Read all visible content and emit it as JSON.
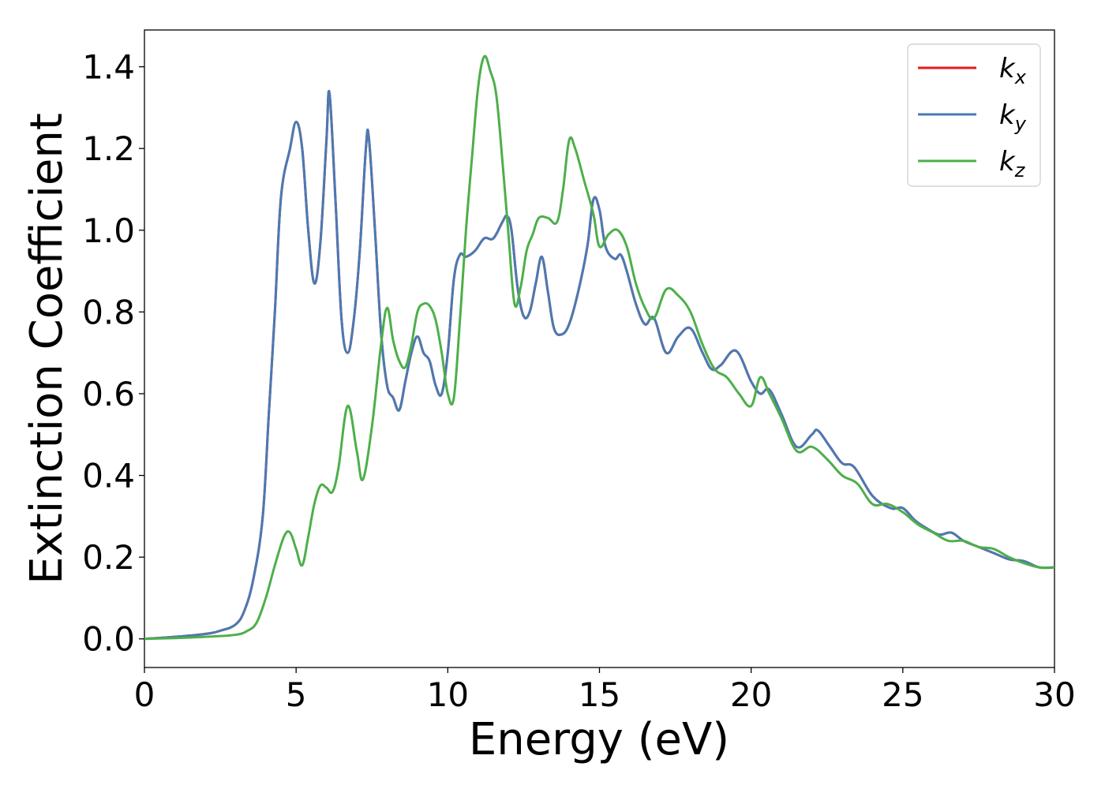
{
  "chart_data": {
    "type": "line",
    "title": "",
    "xlabel": "Energy (eV)",
    "ylabel": "Extinction Coefficient",
    "xlim": [
      0,
      30
    ],
    "ylim": [
      -0.07,
      1.49
    ],
    "xticks": [
      0,
      5,
      10,
      15,
      20,
      25,
      30
    ],
    "xtick_labels": [
      "0",
      "5",
      "10",
      "15",
      "20",
      "25",
      "30"
    ],
    "yticks": [
      0.0,
      0.2,
      0.4,
      0.6,
      0.8,
      1.0,
      1.2,
      1.4
    ],
    "ytick_labels": [
      "0.0",
      "0.2",
      "0.4",
      "0.6",
      "0.8",
      "1.0",
      "1.2",
      "1.4"
    ],
    "grid": false,
    "legend_position": "top-right",
    "series": [
      {
        "name": "k_x",
        "label_base": "k",
        "label_sub": "x",
        "color": "#e41a1c",
        "x": [
          0,
          1,
          2,
          2.5,
          3,
          3.3,
          3.6,
          3.9,
          4.1,
          4.3,
          4.5,
          4.8,
          5.0,
          5.2,
          5.4,
          5.6,
          5.8,
          6.0,
          6.1,
          6.3,
          6.5,
          6.7,
          6.9,
          7.1,
          7.3,
          7.4,
          7.6,
          7.8,
          8.0,
          8.2,
          8.4,
          8.6,
          8.8,
          9.0,
          9.2,
          9.4,
          9.6,
          9.8,
          10.0,
          10.2,
          10.4,
          10.6,
          10.9,
          11.2,
          11.5,
          11.8,
          11.95,
          12.1,
          12.3,
          12.5,
          12.7,
          12.9,
          13.1,
          13.3,
          13.5,
          13.75,
          14.0,
          14.3,
          14.6,
          14.8,
          15.0,
          15.2,
          15.5,
          15.7,
          15.9,
          16.2,
          16.5,
          16.8,
          17.2,
          17.6,
          18.0,
          18.4,
          18.7,
          19.0,
          19.5,
          20.0,
          20.3,
          20.6,
          21.0,
          21.5,
          22.0,
          22.2,
          22.6,
          23.0,
          23.4,
          24.0,
          24.6,
          25.0,
          25.4,
          25.8,
          26.2,
          26.6,
          27.0,
          27.5,
          28.0,
          28.5,
          29.0,
          29.5,
          30.0
        ],
        "y": [
          0.0,
          0.005,
          0.012,
          0.02,
          0.035,
          0.07,
          0.15,
          0.3,
          0.55,
          0.8,
          1.08,
          1.2,
          1.265,
          1.2,
          1.0,
          0.87,
          0.97,
          1.22,
          1.335,
          1.07,
          0.78,
          0.7,
          0.78,
          0.95,
          1.2,
          1.225,
          1.0,
          0.75,
          0.62,
          0.59,
          0.56,
          0.63,
          0.7,
          0.74,
          0.7,
          0.68,
          0.62,
          0.6,
          0.7,
          0.88,
          0.94,
          0.935,
          0.95,
          0.98,
          0.98,
          1.02,
          1.035,
          1.0,
          0.86,
          0.79,
          0.8,
          0.87,
          0.935,
          0.85,
          0.76,
          0.745,
          0.77,
          0.85,
          0.96,
          1.075,
          1.05,
          0.96,
          0.93,
          0.94,
          0.9,
          0.82,
          0.77,
          0.785,
          0.7,
          0.74,
          0.76,
          0.7,
          0.66,
          0.67,
          0.705,
          0.63,
          0.6,
          0.61,
          0.55,
          0.47,
          0.5,
          0.51,
          0.47,
          0.43,
          0.42,
          0.35,
          0.32,
          0.32,
          0.29,
          0.27,
          0.255,
          0.26,
          0.24,
          0.225,
          0.21,
          0.195,
          0.19,
          0.175,
          0.175
        ]
      },
      {
        "name": "k_y",
        "label_base": "k",
        "label_sub": "y",
        "color": "#4a7ab3",
        "x": [
          0,
          1,
          2,
          2.5,
          3,
          3.3,
          3.6,
          3.9,
          4.1,
          4.3,
          4.5,
          4.8,
          5.0,
          5.2,
          5.4,
          5.6,
          5.8,
          6.0,
          6.1,
          6.3,
          6.5,
          6.7,
          6.9,
          7.1,
          7.3,
          7.4,
          7.6,
          7.8,
          8.0,
          8.2,
          8.4,
          8.6,
          8.8,
          9.0,
          9.2,
          9.4,
          9.6,
          9.8,
          10.0,
          10.2,
          10.4,
          10.6,
          10.9,
          11.2,
          11.5,
          11.8,
          11.95,
          12.1,
          12.3,
          12.5,
          12.7,
          12.9,
          13.1,
          13.3,
          13.5,
          13.75,
          14.0,
          14.3,
          14.6,
          14.8,
          15.0,
          15.2,
          15.5,
          15.7,
          15.9,
          16.2,
          16.5,
          16.8,
          17.2,
          17.6,
          18.0,
          18.4,
          18.7,
          19.0,
          19.5,
          20.0,
          20.3,
          20.6,
          21.0,
          21.5,
          22.0,
          22.2,
          22.6,
          23.0,
          23.4,
          24.0,
          24.6,
          25.0,
          25.4,
          25.8,
          26.2,
          26.6,
          27.0,
          27.5,
          28.0,
          28.5,
          29.0,
          29.5,
          30.0
        ],
        "y": [
          0.0,
          0.005,
          0.012,
          0.02,
          0.035,
          0.07,
          0.15,
          0.3,
          0.55,
          0.8,
          1.08,
          1.2,
          1.265,
          1.2,
          1.0,
          0.87,
          0.97,
          1.22,
          1.335,
          1.07,
          0.78,
          0.7,
          0.78,
          0.95,
          1.2,
          1.225,
          1.0,
          0.75,
          0.62,
          0.59,
          0.56,
          0.63,
          0.7,
          0.74,
          0.7,
          0.68,
          0.62,
          0.6,
          0.7,
          0.88,
          0.94,
          0.935,
          0.95,
          0.98,
          0.98,
          1.02,
          1.035,
          1.0,
          0.86,
          0.79,
          0.8,
          0.87,
          0.935,
          0.85,
          0.76,
          0.745,
          0.77,
          0.85,
          0.96,
          1.075,
          1.05,
          0.96,
          0.93,
          0.94,
          0.9,
          0.82,
          0.77,
          0.785,
          0.7,
          0.74,
          0.76,
          0.7,
          0.66,
          0.67,
          0.705,
          0.63,
          0.6,
          0.61,
          0.55,
          0.47,
          0.5,
          0.51,
          0.47,
          0.43,
          0.42,
          0.35,
          0.32,
          0.32,
          0.29,
          0.27,
          0.255,
          0.26,
          0.24,
          0.225,
          0.21,
          0.195,
          0.19,
          0.175,
          0.175
        ]
      },
      {
        "name": "k_z",
        "label_base": "k",
        "label_sub": "z",
        "color": "#4daf4a",
        "x": [
          0,
          1,
          2,
          3,
          3.4,
          3.7,
          4.0,
          4.3,
          4.6,
          4.8,
          5.0,
          5.2,
          5.4,
          5.6,
          5.8,
          6.0,
          6.2,
          6.4,
          6.7,
          7.0,
          7.2,
          7.5,
          7.8,
          8.0,
          8.2,
          8.4,
          8.6,
          8.8,
          9.0,
          9.2,
          9.4,
          9.6,
          9.8,
          10.0,
          10.2,
          10.4,
          10.6,
          10.8,
          11.0,
          11.2,
          11.4,
          11.6,
          11.8,
          12.0,
          12.2,
          12.4,
          12.6,
          12.8,
          13.0,
          13.3,
          13.6,
          13.8,
          14.0,
          14.2,
          14.5,
          14.8,
          15.0,
          15.3,
          15.6,
          15.9,
          16.2,
          16.5,
          16.8,
          17.2,
          17.6,
          18.0,
          18.4,
          18.8,
          19.2,
          19.6,
          20.0,
          20.3,
          20.6,
          21.0,
          21.5,
          22.0,
          22.5,
          23.0,
          23.5,
          24.0,
          24.5,
          25.0,
          25.5,
          26.0,
          26.5,
          27.0,
          27.5,
          28.0,
          28.5,
          29.0,
          29.5,
          30.0
        ],
        "y": [
          0.0,
          0.002,
          0.005,
          0.01,
          0.02,
          0.04,
          0.1,
          0.18,
          0.25,
          0.26,
          0.22,
          0.18,
          0.25,
          0.33,
          0.375,
          0.37,
          0.36,
          0.42,
          0.57,
          0.46,
          0.39,
          0.52,
          0.72,
          0.81,
          0.73,
          0.68,
          0.665,
          0.72,
          0.8,
          0.82,
          0.815,
          0.78,
          0.7,
          0.6,
          0.59,
          0.78,
          1.0,
          1.18,
          1.35,
          1.425,
          1.39,
          1.33,
          1.17,
          0.99,
          0.82,
          0.86,
          0.95,
          0.99,
          1.03,
          1.03,
          1.02,
          1.1,
          1.22,
          1.2,
          1.12,
          1.04,
          0.96,
          0.99,
          1.0,
          0.96,
          0.87,
          0.81,
          0.785,
          0.855,
          0.84,
          0.8,
          0.72,
          0.66,
          0.64,
          0.6,
          0.57,
          0.64,
          0.6,
          0.54,
          0.46,
          0.47,
          0.44,
          0.4,
          0.38,
          0.33,
          0.33,
          0.31,
          0.28,
          0.26,
          0.24,
          0.24,
          0.225,
          0.22,
          0.2,
          0.185,
          0.175,
          0.175
        ]
      }
    ]
  }
}
